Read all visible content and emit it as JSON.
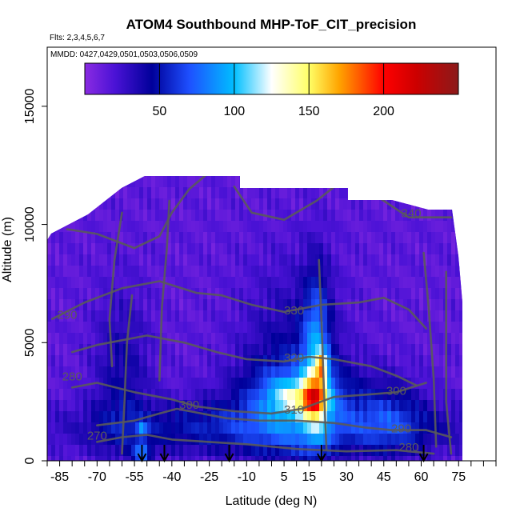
{
  "chart_data": {
    "type": "heatmap",
    "title": "ATOM4 Southbound MHP-ToF_CIT_precision",
    "subtitle_flights": "Flts: 2,3,4,5,6,7",
    "subtitle_dates": "MMDD: 0427,0429,0501,0503,0506,0509",
    "xlabel": "Latitude (deg N)",
    "ylabel": "Altitude (m)",
    "xlim": [
      -90,
      90
    ],
    "ylim": [
      0,
      17500
    ],
    "x_ticks": [
      -85,
      -70,
      -55,
      -40,
      -25,
      -10,
      5,
      15,
      30,
      45,
      60,
      75
    ],
    "x_tick_labels": [
      "-85",
      "-70",
      "-55",
      "-40",
      "-25",
      "-10",
      "5",
      "15",
      "30",
      "45",
      "60",
      "75"
    ],
    "y_ticks": [
      0,
      5000,
      10000,
      15000
    ],
    "y_tick_labels": [
      "0",
      "5000",
      "10000",
      "15000"
    ],
    "colorbar": {
      "range": [
        0,
        250
      ],
      "ticks": [
        50,
        100,
        150,
        200
      ],
      "tick_labels": [
        "50",
        "100",
        "150",
        "200"
      ],
      "stops": [
        {
          "v": 0,
          "c": "#8a2be2"
        },
        {
          "v": 20,
          "c": "#4b12d6"
        },
        {
          "v": 45,
          "c": "#00009a"
        },
        {
          "v": 70,
          "c": "#1e50ff"
        },
        {
          "v": 100,
          "c": "#00bfff"
        },
        {
          "v": 125,
          "c": "#ffffff"
        },
        {
          "v": 150,
          "c": "#ffff66"
        },
        {
          "v": 170,
          "c": "#ffa500"
        },
        {
          "v": 200,
          "c": "#ff0000"
        },
        {
          "v": 222,
          "c": "#cc0000"
        },
        {
          "v": 250,
          "c": "#8b1a1a"
        }
      ]
    },
    "contour_labels": [
      {
        "text": "340",
        "lat": 56,
        "alt": 10300
      },
      {
        "text": "330",
        "lat": 9,
        "alt": 6200
      },
      {
        "text": "320",
        "lat": 9,
        "alt": 4200
      },
      {
        "text": "310",
        "lat": 9,
        "alt": 2000
      },
      {
        "text": "300",
        "lat": -33,
        "alt": 2200
      },
      {
        "text": "300",
        "lat": 50,
        "alt": 2800
      },
      {
        "text": "290",
        "lat": -82,
        "alt": 6000
      },
      {
        "text": "290",
        "lat": 52,
        "alt": 1200
      },
      {
        "text": "280",
        "lat": -80,
        "alt": 3400
      },
      {
        "text": "280",
        "lat": 55,
        "alt": 400
      },
      {
        "text": "270",
        "lat": -70,
        "alt": 900
      }
    ],
    "profile_arrows_lat": [
      -52,
      -43,
      -17,
      20,
      61
    ],
    "colors": {
      "background": "#8a2be2",
      "contour": "#5a5a5a",
      "axis": "#000000"
    }
  }
}
